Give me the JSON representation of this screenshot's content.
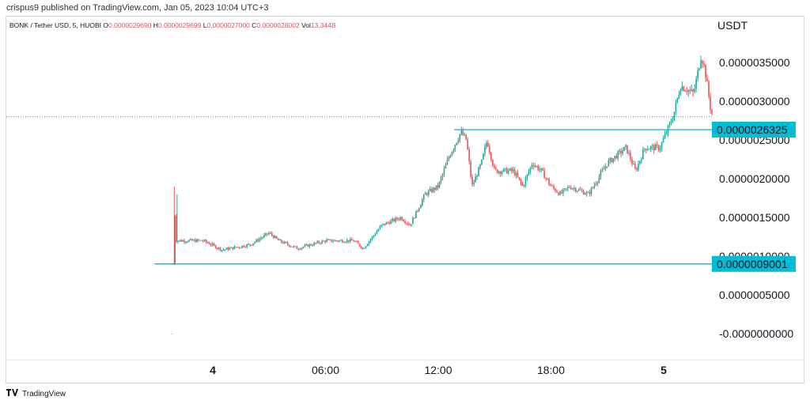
{
  "header": {
    "published_by": "crispus9 published on TradingView.com, Jan 05, 2023 10:04 UTC+3"
  },
  "legend": {
    "symbol": "BONK / Tether USD, 5, HUOBI",
    "o_label": "O",
    "o": "0.0000029690",
    "h_label": "H",
    "h": "0.0000029699",
    "l_label": "L",
    "l": "0.0000027000",
    "c_label": "C",
    "c": "0.0000028002",
    "vol_label": "Vol",
    "vol": "13.344B"
  },
  "price_axis": {
    "unit": "USDT"
  },
  "footer": {
    "brand": "TradingView"
  },
  "colors": {
    "up": "#26a69a",
    "down": "#ef5350",
    "level_line": "#00bcd4",
    "level_badge": "#00bcd4",
    "current_price_line": "#ef5350"
  },
  "chart_data": {
    "type": "candlestick",
    "title": "BONK / Tether USD, 5, HUOBI",
    "ylabel": "USDT",
    "ylim": [
      -3e-07,
      3.8e-06
    ],
    "y_ticks": [
      "0.0000035000",
      "0.0000030000",
      "0.0000025000",
      "0.0000020000",
      "0.0000015000",
      "0.0000010000",
      "0.0000005000",
      "-0.0000000000"
    ],
    "y_tick_values": [
      3.5e-06,
      3e-06,
      2.5e-06,
      2e-06,
      1.5e-06,
      1e-06,
      5e-07,
      0
    ],
    "x_ticks": [
      "4",
      "06:00",
      "12:00",
      "18:00",
      "5"
    ],
    "x_tick_hours": [
      0,
      6,
      12,
      18,
      24
    ],
    "x_range_hours": [
      -2.65,
      28.9
    ],
    "horizontal_levels": [
      {
        "label": "0.0000026325",
        "value": 2.6325e-06,
        "from_hour": 12.85
      },
      {
        "label": "0.0000009001",
        "value": 9.001e-07,
        "from_hour": -3.1
      }
    ],
    "current_price": 2.8002e-06,
    "price_path": [
      [
        -2.1,
        9e-07
      ],
      [
        -2.05,
        1.7e-06
      ],
      [
        -1.95,
        1.2e-06
      ],
      [
        -1.5,
        1.2e-06
      ],
      [
        -0.5,
        1.2e-06
      ],
      [
        0.5,
        1.08e-06
      ],
      [
        2.0,
        1.15e-06
      ],
      [
        3.0,
        1.3e-06
      ],
      [
        3.5,
        1.2e-06
      ],
      [
        4.5,
        1.1e-06
      ],
      [
        6.0,
        1.2e-06
      ],
      [
        7.5,
        1.2e-06
      ],
      [
        8.0,
        1.1e-06
      ],
      [
        9.0,
        1.4e-06
      ],
      [
        10.0,
        1.5e-06
      ],
      [
        10.5,
        1.4e-06
      ],
      [
        11.3,
        1.8e-06
      ],
      [
        12.0,
        1.9e-06
      ],
      [
        12.6,
        2.3e-06
      ],
      [
        13.2,
        2.6e-06
      ],
      [
        13.5,
        2.5e-06
      ],
      [
        13.8,
        1.9e-06
      ],
      [
        14.3,
        2.2e-06
      ],
      [
        14.6,
        2.5e-06
      ],
      [
        15.0,
        2.1e-06
      ],
      [
        16.0,
        2.1e-06
      ],
      [
        16.5,
        1.9e-06
      ],
      [
        17.0,
        2.2e-06
      ],
      [
        17.5,
        2.1e-06
      ],
      [
        18.0,
        1.9e-06
      ],
      [
        18.5,
        1.8e-06
      ],
      [
        19.0,
        1.9e-06
      ],
      [
        20.0,
        1.8e-06
      ],
      [
        21.0,
        2.2e-06
      ],
      [
        22.0,
        2.4e-06
      ],
      [
        22.5,
        2.1e-06
      ],
      [
        23.0,
        2.4e-06
      ],
      [
        23.8,
        2.4e-06
      ],
      [
        24.5,
        2.8e-06
      ],
      [
        24.9,
        3.2e-06
      ],
      [
        25.6,
        3.1e-06
      ],
      [
        26.0,
        3.6e-06
      ],
      [
        26.2,
        3.4e-06
      ],
      [
        26.5,
        2.9e-06
      ],
      [
        26.62,
        2.8e-06
      ]
    ]
  }
}
